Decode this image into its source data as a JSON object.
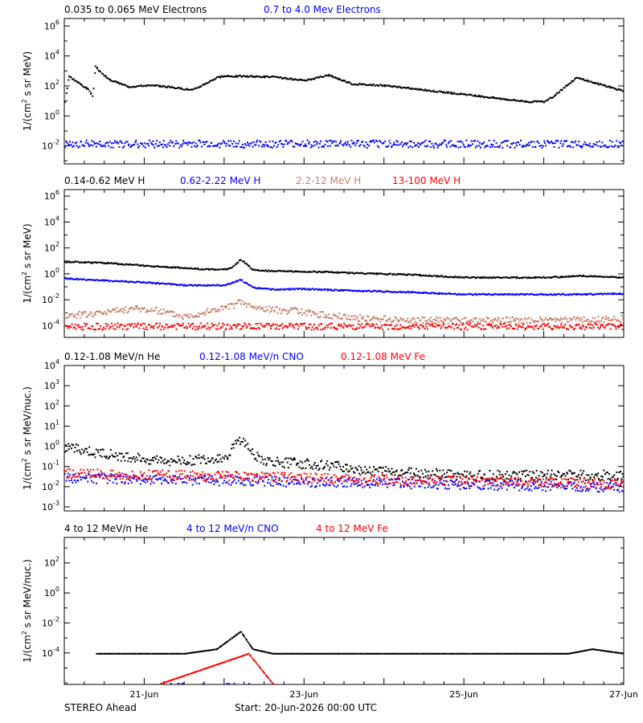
{
  "footer": {
    "left": "STEREO Ahead",
    "center": "Start: 20-Jun-2026 00:00 UTC"
  },
  "x_axis": {
    "range_days": [
      0,
      7
    ],
    "tick_days": [
      1,
      3,
      5,
      7
    ],
    "tick_labels": [
      "21-Jun",
      "23-Jun",
      "25-Jun",
      "27-Jun"
    ]
  },
  "colors": {
    "black": "#000000",
    "blue": "#0000ff",
    "brown": "#c8806a",
    "red": "#ff0000"
  },
  "chart_data": [
    {
      "type": "scatter",
      "ylog": true,
      "ylim_exp": [
        -3.2,
        6.5
      ],
      "major_exp": [
        -2,
        0,
        2,
        4,
        6
      ],
      "tick_labels": [
        "10-2",
        "100",
        "102",
        "104",
        "106"
      ],
      "ylabel": "1/(cm2 s sr MeV)",
      "series": [
        {
          "name": "0.035 to 0.065 MeV Electrons",
          "color": "#000000",
          "x": [
            0.0,
            0.05,
            0.3,
            0.35,
            0.38,
            0.45,
            0.55,
            0.8,
            1.0,
            1.2,
            1.35,
            1.6,
            1.9,
            2.0,
            2.2,
            2.6,
            3.0,
            3.3,
            3.6,
            4.0,
            4.5,
            5.0,
            5.5,
            5.8,
            6.0,
            6.1,
            6.4,
            6.8,
            7.0
          ],
          "y": [
            10,
            500,
            60,
            20,
            2200,
            900,
            300,
            100,
            120,
            110,
            90,
            60,
            400,
            500,
            500,
            450,
            250,
            600,
            150,
            120,
            60,
            30,
            15,
            10,
            10,
            20,
            400,
            100,
            50
          ]
        },
        {
          "name": "0.7 to 4.0 Mev Electrons",
          "color": "#0000ff",
          "x": [
            0,
            7
          ],
          "y": [
            0.015,
            0.015
          ]
        }
      ]
    },
    {
      "type": "scatter",
      "ylog": true,
      "ylim_exp": [
        -4.9,
        6.5
      ],
      "major_exp": [
        -4,
        -2,
        0,
        2,
        4,
        6
      ],
      "tick_labels": [
        "10-4",
        "10-2",
        "100",
        "102",
        "104",
        "106"
      ],
      "ylabel": "1/(cm2 s sr MeV)",
      "series": [
        {
          "name": "0.14-0.62 MeV H",
          "color": "#000000",
          "x": [
            0,
            0.5,
            1.0,
            1.4,
            1.8,
            2.0,
            2.1,
            2.2,
            2.35,
            2.5,
            2.8,
            3.3,
            3.8,
            4.3,
            5.0,
            5.5,
            6.0,
            6.5,
            7.0
          ],
          "y": [
            10,
            8,
            5,
            3.5,
            2.5,
            2.5,
            4,
            15,
            2.5,
            2,
            1.8,
            1.6,
            1.2,
            1.0,
            0.6,
            0.6,
            0.6,
            0.8,
            0.6
          ]
        },
        {
          "name": "0.62-2.22 MeV H",
          "color": "#0000ff",
          "x": [
            0,
            0.5,
            1.0,
            1.5,
            2.0,
            2.2,
            2.35,
            2.6,
            3.0,
            3.5,
            4.0,
            4.5,
            5.0,
            5.5,
            6.0,
            6.5,
            7.0
          ],
          "y": [
            0.5,
            0.35,
            0.25,
            0.15,
            0.15,
            0.4,
            0.1,
            0.07,
            0.08,
            0.06,
            0.05,
            0.04,
            0.03,
            0.03,
            0.03,
            0.03,
            0.035
          ]
        },
        {
          "name": "2.2-12 MeV H",
          "color": "#c8806a",
          "x": [
            0,
            0.3,
            0.6,
            0.9,
            1.2,
            1.5,
            1.8,
            2.1,
            2.2,
            2.35,
            2.6,
            2.9,
            3.3,
            3.8,
            4.5,
            5.5,
            6.5,
            7.0
          ],
          "y": [
            0.0007,
            0.0009,
            0.0015,
            0.0025,
            0.0015,
            0.0006,
            0.0015,
            0.004,
            0.008,
            0.003,
            0.002,
            0.0015,
            0.0007,
            0.0004,
            0.0003,
            0.0003,
            0.0003,
            0.0004
          ]
        },
        {
          "name": "13-100 MeV H",
          "color": "#ff0000",
          "x": [
            0,
            7
          ],
          "y": [
            0.0001,
            0.0001
          ]
        }
      ]
    },
    {
      "type": "scatter",
      "ylog": true,
      "ylim_exp": [
        -3.2,
        4
      ],
      "major_exp": [
        -3,
        -2,
        -1,
        0,
        1,
        2,
        3,
        4
      ],
      "tick_labels": [
        "10-3",
        "10-2",
        "10-1",
        "100",
        "101",
        "102",
        "103",
        "104"
      ],
      "ylabel": "1/(cm2 s sr MeV/nuc.)",
      "series": [
        {
          "name": "0.12-1.08 MeV/n He",
          "color": "#000000",
          "x": [
            0,
            0.3,
            0.6,
            1.0,
            1.5,
            2.0,
            2.2,
            2.35,
            2.5,
            3.0,
            3.5,
            4.0,
            4.5,
            5.0,
            5.5,
            6.0,
            6.5,
            7.0
          ],
          "y": [
            1.0,
            0.6,
            0.4,
            0.25,
            0.2,
            0.3,
            2.5,
            0.5,
            0.2,
            0.15,
            0.1,
            0.06,
            0.05,
            0.04,
            0.04,
            0.04,
            0.04,
            0.04
          ]
        },
        {
          "name": "0.12-1.08 MeV/n CNO",
          "color": "#0000ff",
          "x": [
            0,
            7
          ],
          "y": [
            0.03,
            0.01
          ]
        },
        {
          "name": "0.12-1.08 MeV Fe",
          "color": "#ff0000",
          "x": [
            0,
            7
          ],
          "y": [
            0.05,
            0.015
          ]
        }
      ]
    },
    {
      "type": "scatter",
      "ylog": true,
      "ylim_exp": [
        -6.1,
        3.7
      ],
      "major_exp": [
        -4,
        -2,
        0,
        2
      ],
      "tick_labels": [
        "10-4",
        "10-2",
        "100",
        "102"
      ],
      "ylabel": "1/(cm2 s sr MeV/nuc.)",
      "series": [
        {
          "name": "4 to 12 MeV/n He",
          "color": "#000000",
          "x": [
            0.4,
            1.1,
            1.5,
            1.9,
            2.2,
            2.35,
            2.6,
            3.0,
            3.5,
            4.0,
            5.5,
            6.0,
            6.3,
            6.6,
            7.0
          ],
          "y": [
            0.0001,
            0.0001,
            0.0001,
            0.0002,
            0.003,
            0.0002,
            0.0001,
            0.0001,
            0.0001,
            0.0001,
            0.0001,
            0.0001,
            0.0001,
            0.0002,
            0.0001
          ]
        },
        {
          "name": "4 to 12 MeV/n CNO",
          "color": "#0000ff",
          "x": [
            1.0,
            1.8,
            2.5
          ],
          "y": [
            1e-06,
            1e-06,
            1e-06
          ]
        },
        {
          "name": "4 to 12 MeV Fe",
          "color": "#ff0000",
          "x": [
            1.2,
            2.3,
            2.6
          ],
          "y": [
            1e-06,
            0.0001,
            1e-06
          ]
        }
      ]
    }
  ]
}
